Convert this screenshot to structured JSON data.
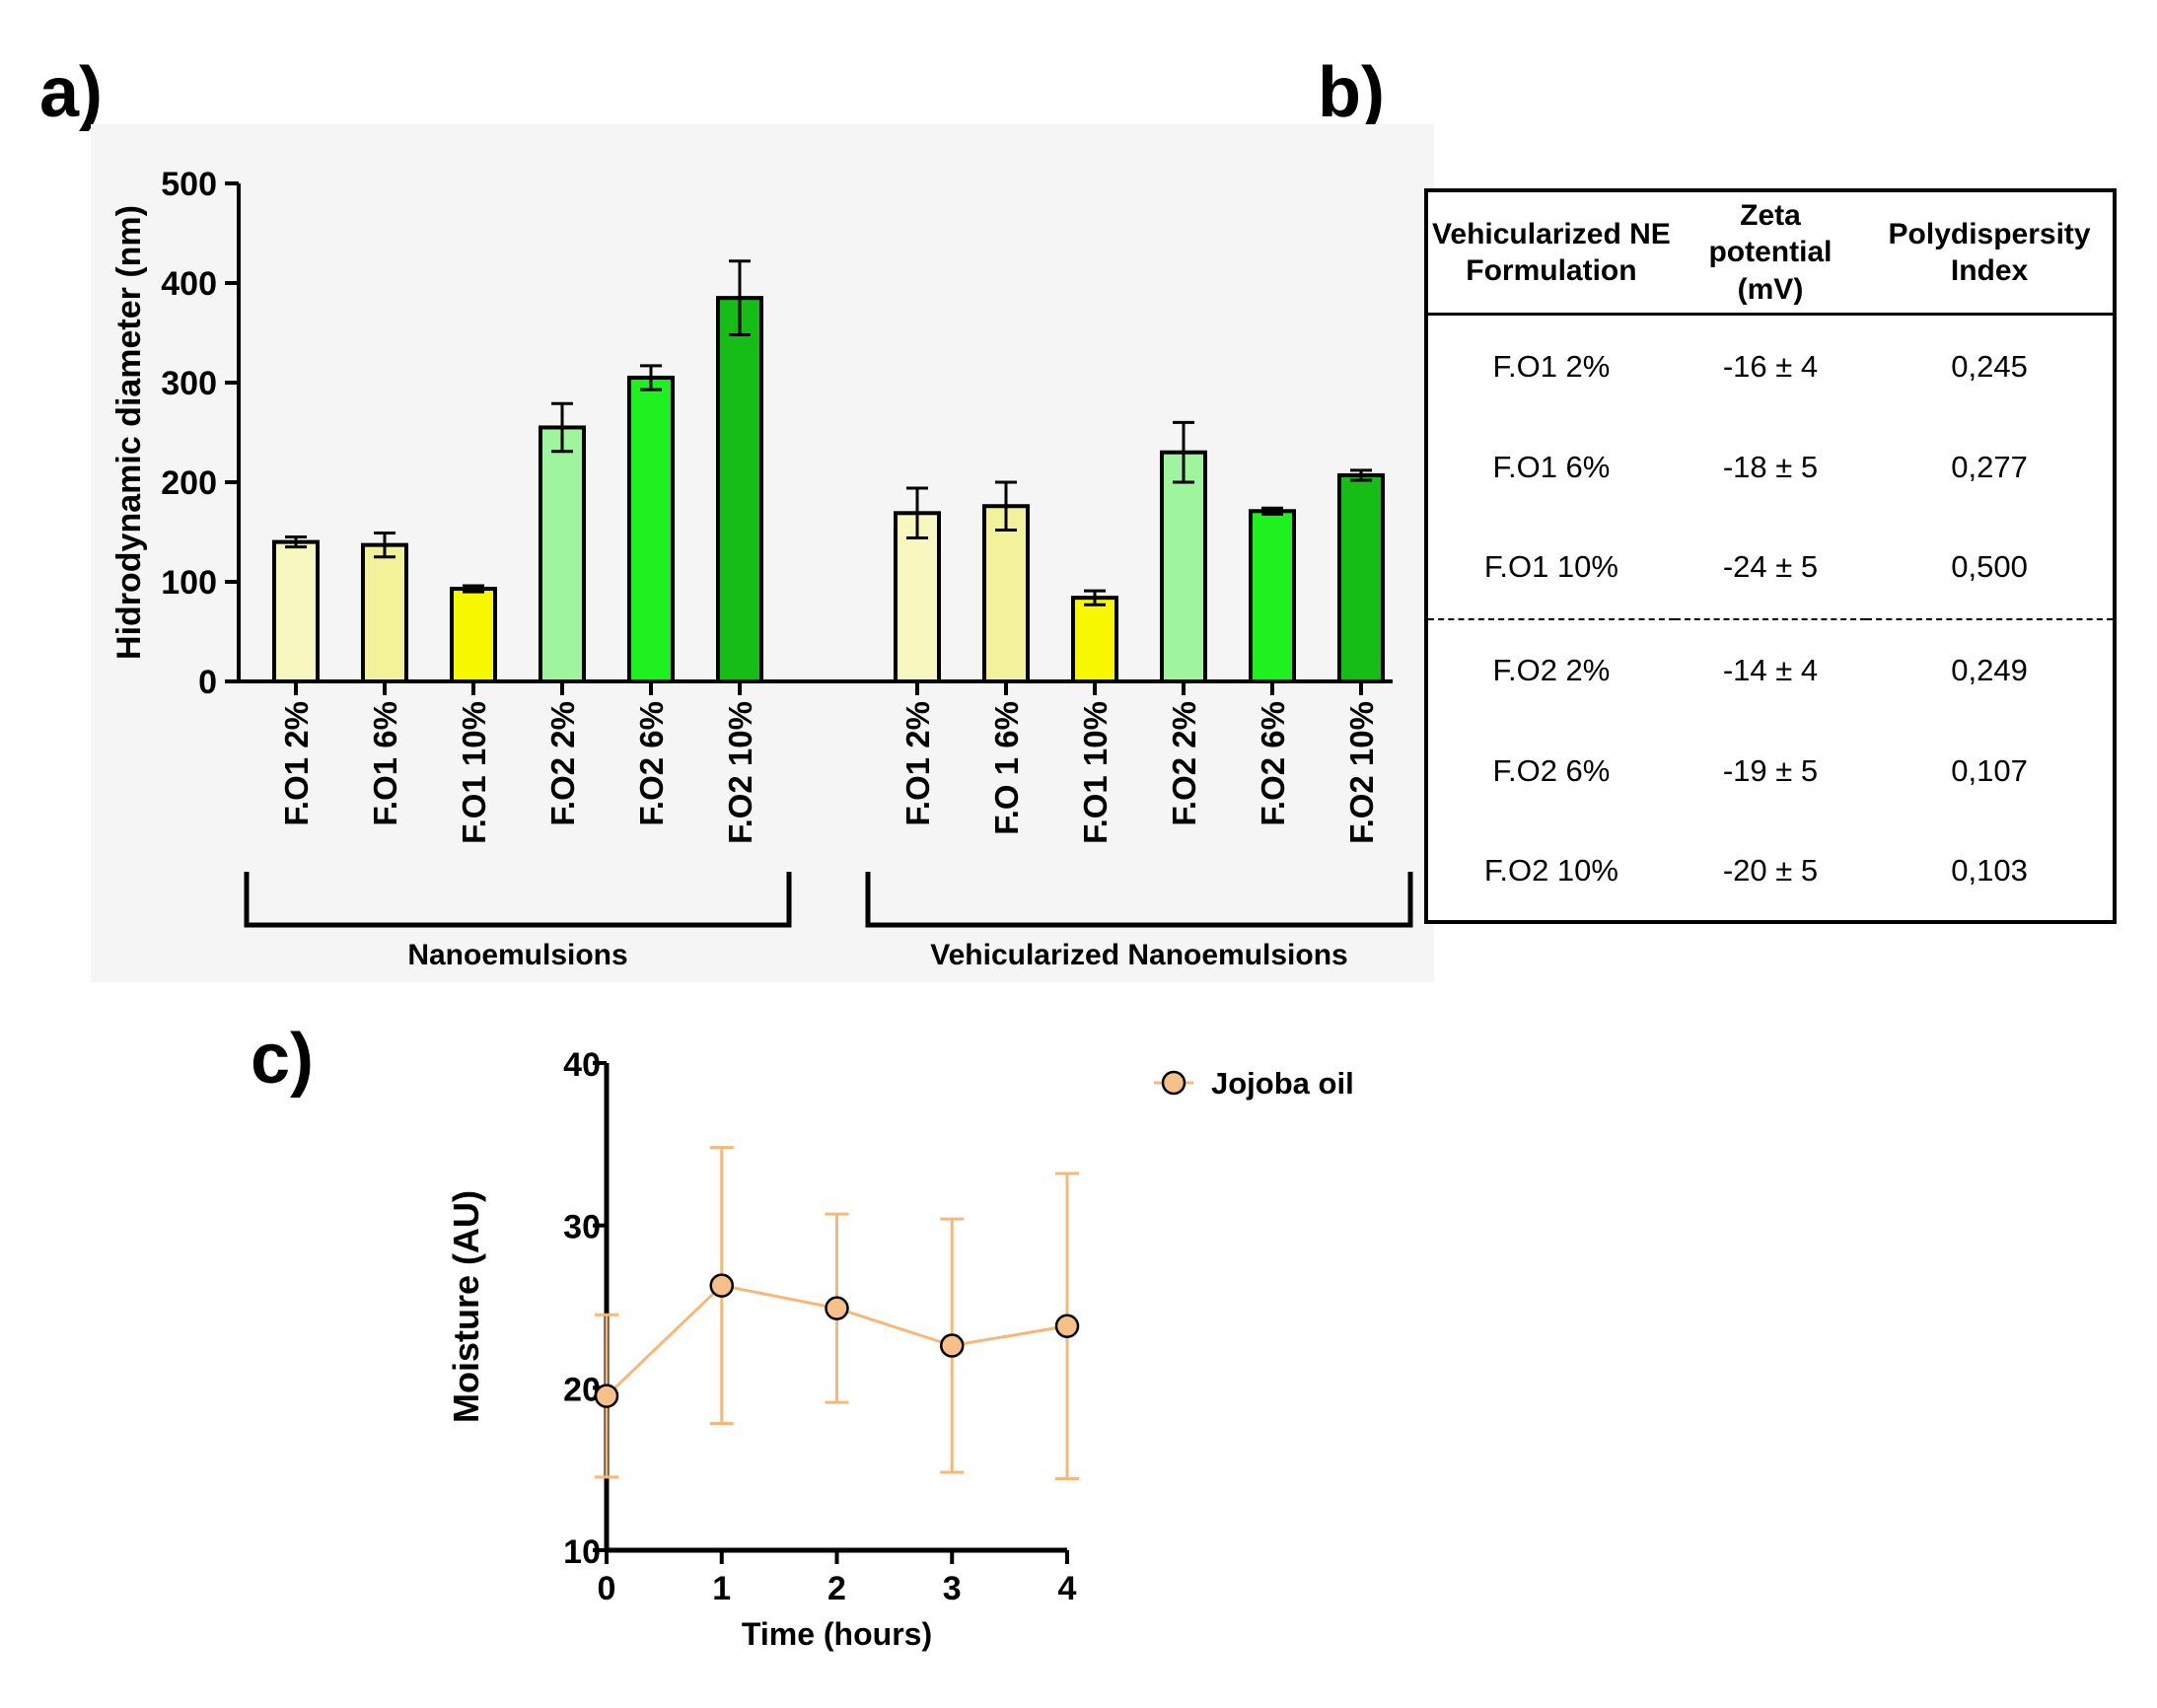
{
  "panels": {
    "a": "a)",
    "b": "b)",
    "c": "c)"
  },
  "colors": {
    "fo1_2": "#f7f7bf",
    "fo1_6": "#f2f29a",
    "fo1_10": "#f7f700",
    "fo2_2": "#9ef59e",
    "fo2_6": "#1ff01f",
    "fo2_10": "#16bd16",
    "jojoba_marker": "#f6c088",
    "jojoba_line": "#f6b879",
    "panel_a_background": "#f5f5f5"
  },
  "chart_data": [
    {
      "type": "bar",
      "panel": "a",
      "ylabel": "Hidrodynamic diameter (nm)",
      "ylim": [
        0,
        500
      ],
      "yticks": [
        "0",
        "100",
        "200",
        "300",
        "400",
        "500"
      ],
      "groups": [
        {
          "label": "Nanoemulsions",
          "categories": [
            "F.O1 2%",
            "F.O1 6%",
            "F.O1 10%",
            "F.O2 2%",
            "F.O2 6%",
            "F.O2 10%"
          ],
          "values": [
            140,
            137,
            93,
            255,
            305,
            385
          ],
          "errors": [
            5,
            12,
            3,
            24,
            12,
            37
          ]
        },
        {
          "label": "Vehicularized Nanoemulsions",
          "categories": [
            "F.O1 2%",
            "F.O 1 6%",
            "F.O1 10%",
            "F.O2 2%",
            "F.O2 6%",
            "F.O2 10%"
          ],
          "values": [
            169,
            176,
            84,
            230,
            171,
            207
          ],
          "errors": [
            25,
            24,
            7,
            30,
            3,
            5
          ]
        }
      ]
    },
    {
      "type": "line",
      "panel": "c",
      "xlabel": "Time  (hours)",
      "ylabel": "Moisture (AU)",
      "xlim": [
        0,
        4
      ],
      "ylim": [
        10,
        40
      ],
      "xticks": [
        "0",
        "1",
        "2",
        "3",
        "4"
      ],
      "yticks": [
        "10",
        "20",
        "30",
        "40"
      ],
      "legend_position": "top-right",
      "series": [
        {
          "name": "Jojoba oil",
          "x": [
            0,
            1,
            2,
            3,
            4
          ],
          "y": [
            19.5,
            26.3,
            24.9,
            22.6,
            23.8
          ],
          "errors": [
            5.0,
            8.5,
            5.8,
            7.8,
            9.4
          ]
        }
      ]
    }
  ],
  "table": {
    "headers": [
      "Vehicularized NE Formulation",
      "Zeta potential (mV)",
      "Polydispersity Index"
    ],
    "rows": [
      [
        "F.O1 2%",
        "-16 ± 4",
        "0,245"
      ],
      [
        "F.O1 6%",
        "-18 ± 5",
        "0,277"
      ],
      [
        "F.O1 10%",
        "-24 ± 5",
        "0,500"
      ],
      [
        "F.O2 2%",
        "-14 ± 4",
        "0,249"
      ],
      [
        "F.O2 6%",
        "-19 ± 5",
        "0,107"
      ],
      [
        "F.O2 10%",
        "-20 ± 5",
        "0,103"
      ]
    ]
  }
}
